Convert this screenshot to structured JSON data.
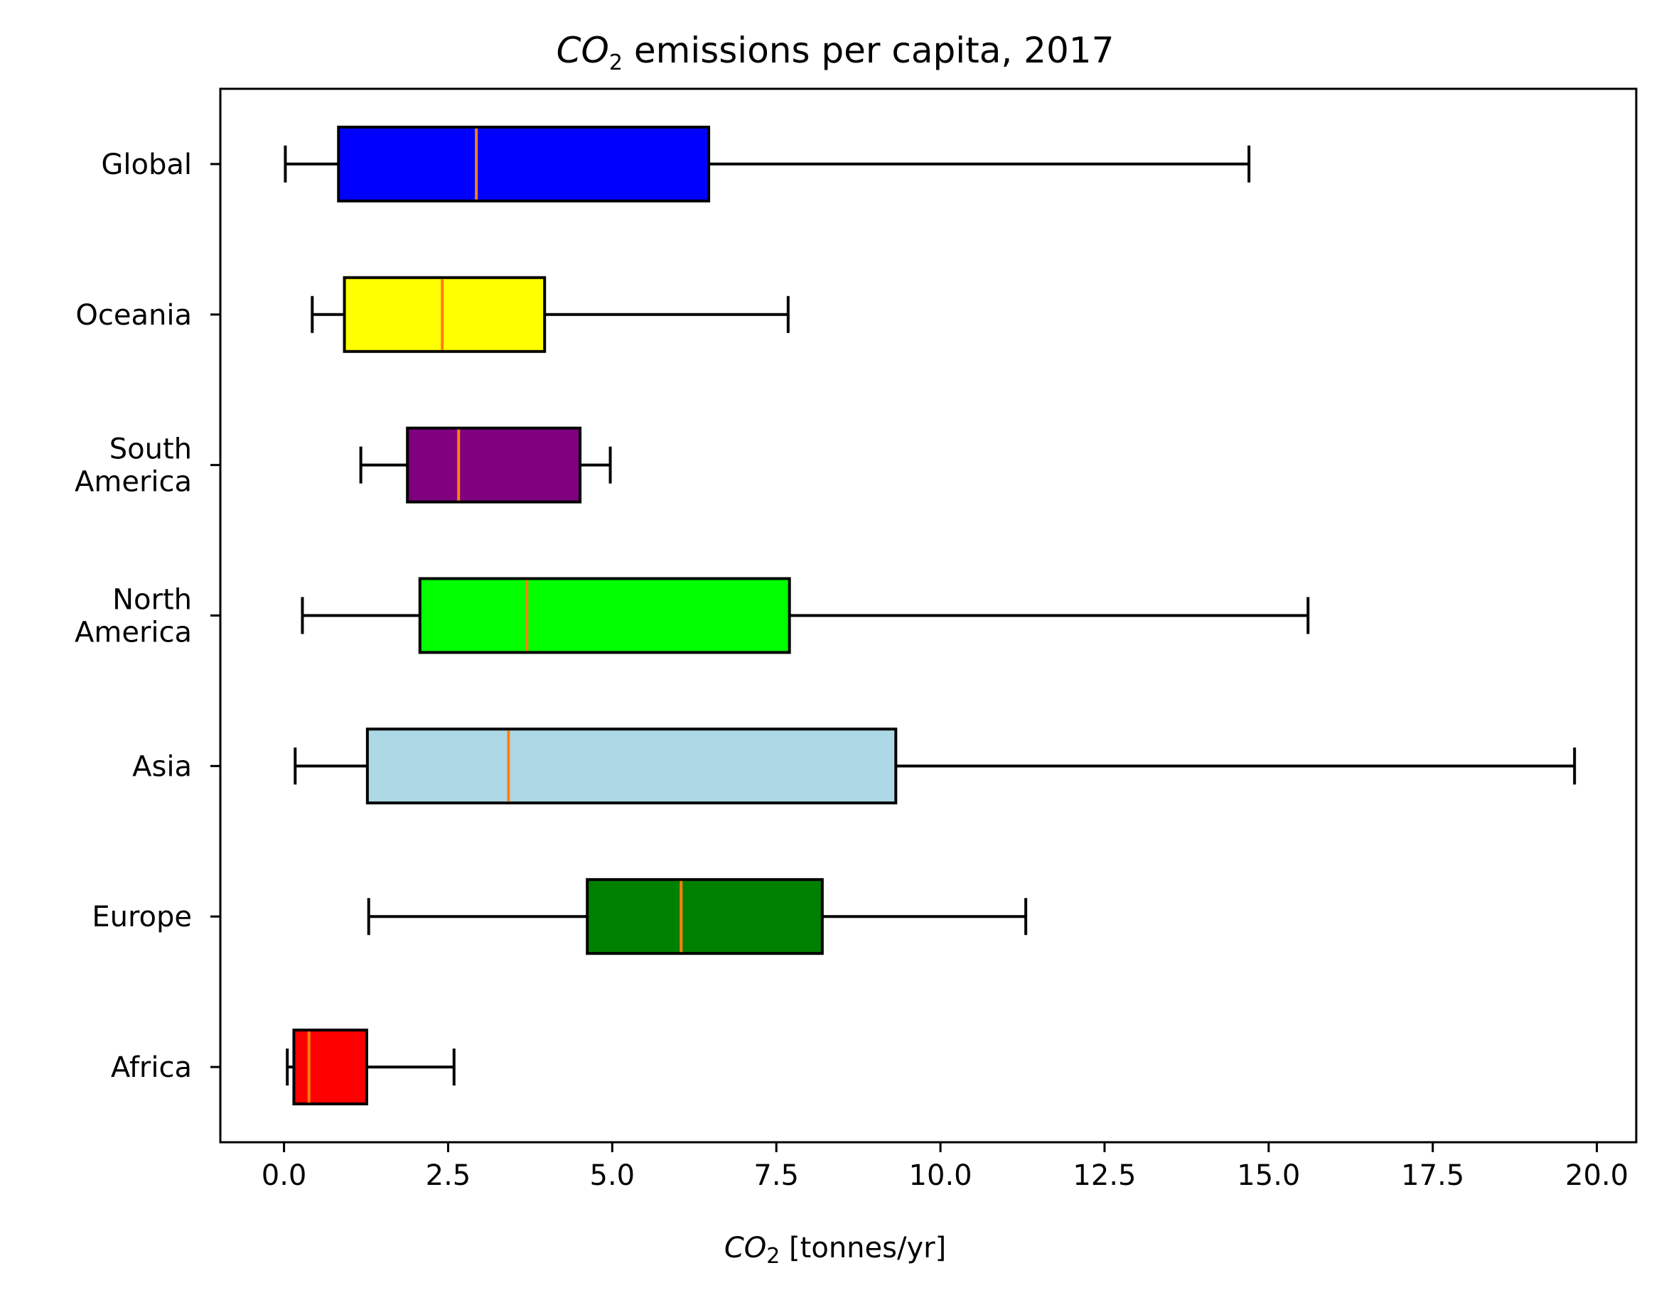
{
  "chart_data": {
    "type": "boxplot",
    "orientation": "horizontal",
    "title": {
      "pre": "",
      "italic": "CO",
      "sub": "2",
      "post": " emissions per capita, 2017"
    },
    "xlabel": {
      "italic": "CO",
      "sub": "2",
      "post": " [tonnes/yr]"
    },
    "ylabel": "",
    "xlim": [
      -0.97,
      20.6
    ],
    "x_ticks": [
      0.0,
      2.5,
      5.0,
      7.5,
      10.0,
      12.5,
      15.0,
      17.5,
      20.0
    ],
    "x_tick_labels": [
      "0.0",
      "2.5",
      "5.0",
      "7.5",
      "10.0",
      "12.5",
      "15.0",
      "17.5",
      "20.0"
    ],
    "categories": [
      [
        "Global"
      ],
      [
        "Oceania"
      ],
      [
        "South",
        "America"
      ],
      [
        "North",
        "America"
      ],
      [
        "Asia"
      ],
      [
        "Europe"
      ],
      [
        "Africa"
      ]
    ],
    "boxes": [
      {
        "whisker_low": 0.02,
        "q1": 0.83,
        "median": 2.93,
        "q3": 6.47,
        "whisker_high": 14.7,
        "color": "#0000ff"
      },
      {
        "whisker_low": 0.43,
        "q1": 0.92,
        "median": 2.41,
        "q3": 3.97,
        "whisker_high": 7.68,
        "color": "#ffff00"
      },
      {
        "whisker_low": 1.17,
        "q1": 1.88,
        "median": 2.66,
        "q3": 4.51,
        "whisker_high": 4.97,
        "color": "#800080"
      },
      {
        "whisker_low": 0.28,
        "q1": 2.07,
        "median": 3.7,
        "q3": 7.7,
        "whisker_high": 15.6,
        "color": "#00ff00"
      },
      {
        "whisker_low": 0.17,
        "q1": 1.27,
        "median": 3.42,
        "q3": 9.32,
        "whisker_high": 19.66,
        "color": "#add8e6"
      },
      {
        "whisker_low": 1.29,
        "q1": 4.62,
        "median": 6.05,
        "q3": 8.2,
        "whisker_high": 11.3,
        "color": "#008000"
      },
      {
        "whisker_low": 0.05,
        "q1": 0.15,
        "median": 0.38,
        "q3": 1.26,
        "whisker_high": 2.59,
        "color": "#ff0000"
      }
    ],
    "median_color": "#ff7f0e",
    "grid": false,
    "legend": "none"
  }
}
